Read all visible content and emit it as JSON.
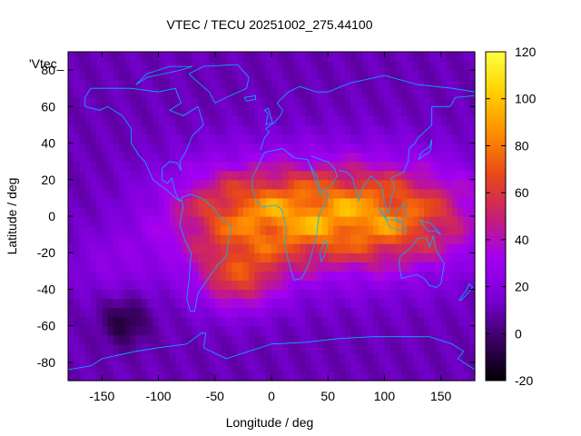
{
  "chart_data": {
    "type": "heatmap",
    "title": "VTEC / TECU 20251002_275.44100",
    "xlabel": "Longitude / deg",
    "ylabel": "Latitude / deg",
    "series_label": "'Vtec_",
    "xlim": [
      -180,
      180
    ],
    "ylim": [
      -90,
      90
    ],
    "x_ticks": [
      -150,
      -100,
      -50,
      0,
      50,
      100,
      150
    ],
    "y_ticks": [
      -80,
      -60,
      -40,
      -20,
      0,
      20,
      40,
      60,
      80
    ],
    "colorbar": {
      "range": [
        -20,
        120
      ],
      "ticks": [
        -20,
        0,
        20,
        40,
        60,
        80,
        100,
        120
      ],
      "colormap": [
        "#000000",
        "#3c0064",
        "#7a00d6",
        "#a300f2",
        "#c8206e",
        "#e84818",
        "#ff8c00",
        "#ffcf00",
        "#ffff40"
      ]
    },
    "features": [
      {
        "name": "equatorial-anomaly",
        "lon": [
          -80,
          170
        ],
        "lat": [
          -30,
          30
        ],
        "peak_value": 105
      },
      {
        "name": "south-atlantic-enhancement",
        "lon": [
          -70,
          10
        ],
        "lat": [
          -55,
          -15
        ],
        "value": 50
      },
      {
        "name": "south-pacific-low",
        "lon": [
          -150,
          -110
        ],
        "lat": [
          -70,
          -45
        ],
        "value": -10
      },
      {
        "name": "background",
        "value": 10
      }
    ],
    "coastline_color": "#00b4ff"
  }
}
